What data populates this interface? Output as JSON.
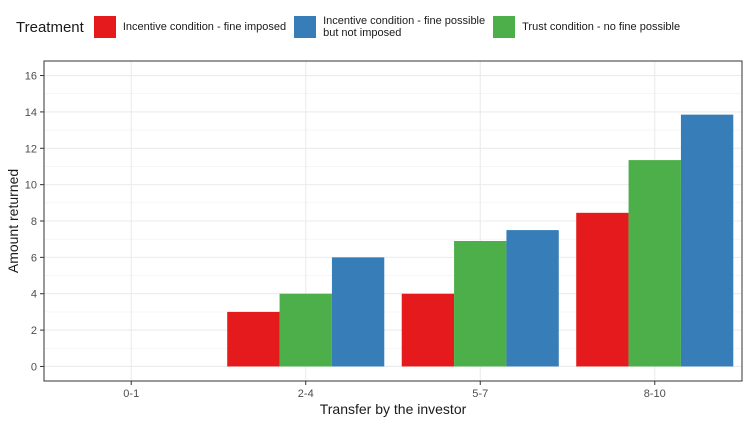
{
  "chart_data": {
    "type": "bar",
    "legend_title": "Treatment",
    "legend_position": "top",
    "categories": [
      "0-1",
      "2-4",
      "5-7",
      "8-10"
    ],
    "series": [
      {
        "name": "Incentive condition - fine imposed",
        "color": "#e41a1c",
        "values": [
          0,
          3,
          4,
          8.45
        ]
      },
      {
        "name": "Trust condition - no fine possible",
        "color": "#4daf4a",
        "values": [
          0,
          4,
          6.9,
          11.35
        ]
      },
      {
        "name": "Incentive condition - fine possible\nbut not imposed",
        "color": "#377eb8",
        "values": [
          0,
          6,
          7.5,
          13.85
        ]
      }
    ],
    "legend_order": [
      0,
      2,
      1
    ],
    "xlabel": "Transfer by the investor",
    "ylabel": "Amount returned",
    "ylim": [
      -0.8,
      16.8
    ],
    "yticks": [
      0,
      2,
      4,
      6,
      8,
      10,
      12,
      14,
      16
    ],
    "grid": true
  }
}
